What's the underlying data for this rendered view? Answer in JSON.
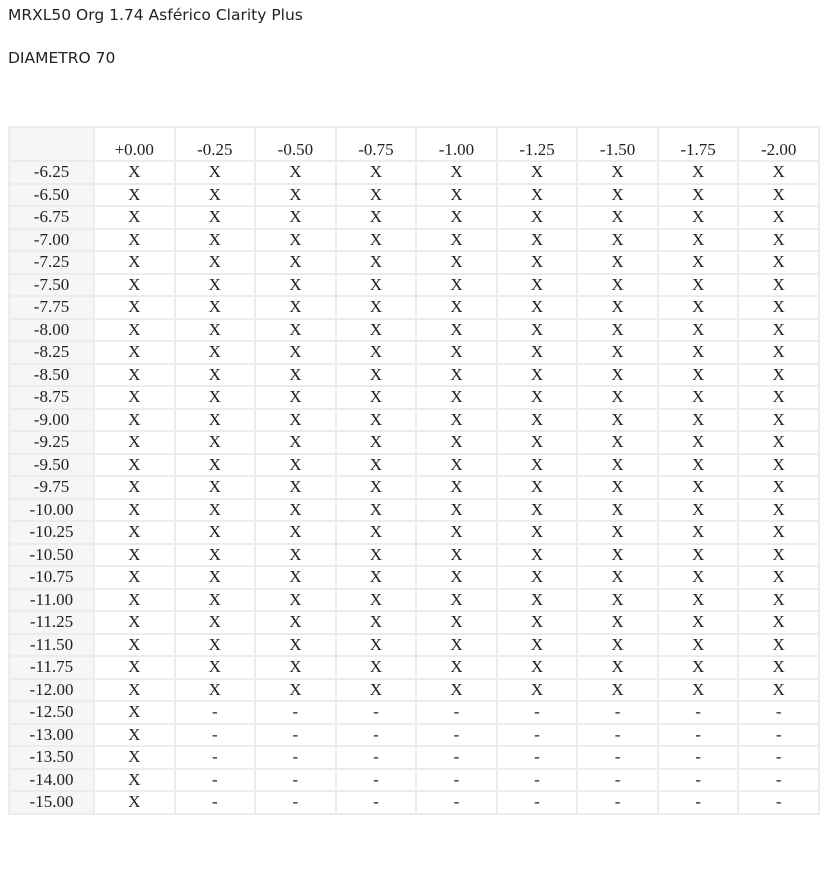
{
  "title": "MRXL50 Org 1.74 Asférico Clarity Plus",
  "subtitle": "DIAMETRO 70",
  "table": {
    "corner": "",
    "columns": [
      "+0.00",
      "-0.25",
      "-0.50",
      "-0.75",
      "-1.00",
      "-1.25",
      "-1.50",
      "-1.75",
      "-2.00"
    ],
    "rows": [
      {
        "label": "-6.25",
        "cells": [
          "X",
          "X",
          "X",
          "X",
          "X",
          "X",
          "X",
          "X",
          "X"
        ]
      },
      {
        "label": "-6.50",
        "cells": [
          "X",
          "X",
          "X",
          "X",
          "X",
          "X",
          "X",
          "X",
          "X"
        ]
      },
      {
        "label": "-6.75",
        "cells": [
          "X",
          "X",
          "X",
          "X",
          "X",
          "X",
          "X",
          "X",
          "X"
        ]
      },
      {
        "label": "-7.00",
        "cells": [
          "X",
          "X",
          "X",
          "X",
          "X",
          "X",
          "X",
          "X",
          "X"
        ]
      },
      {
        "label": "-7.25",
        "cells": [
          "X",
          "X",
          "X",
          "X",
          "X",
          "X",
          "X",
          "X",
          "X"
        ]
      },
      {
        "label": "-7.50",
        "cells": [
          "X",
          "X",
          "X",
          "X",
          "X",
          "X",
          "X",
          "X",
          "X"
        ]
      },
      {
        "label": "-7.75",
        "cells": [
          "X",
          "X",
          "X",
          "X",
          "X",
          "X",
          "X",
          "X",
          "X"
        ]
      },
      {
        "label": "-8.00",
        "cells": [
          "X",
          "X",
          "X",
          "X",
          "X",
          "X",
          "X",
          "X",
          "X"
        ]
      },
      {
        "label": "-8.25",
        "cells": [
          "X",
          "X",
          "X",
          "X",
          "X",
          "X",
          "X",
          "X",
          "X"
        ]
      },
      {
        "label": "-8.50",
        "cells": [
          "X",
          "X",
          "X",
          "X",
          "X",
          "X",
          "X",
          "X",
          "X"
        ]
      },
      {
        "label": "-8.75",
        "cells": [
          "X",
          "X",
          "X",
          "X",
          "X",
          "X",
          "X",
          "X",
          "X"
        ]
      },
      {
        "label": "-9.00",
        "cells": [
          "X",
          "X",
          "X",
          "X",
          "X",
          "X",
          "X",
          "X",
          "X"
        ]
      },
      {
        "label": "-9.25",
        "cells": [
          "X",
          "X",
          "X",
          "X",
          "X",
          "X",
          "X",
          "X",
          "X"
        ]
      },
      {
        "label": "-9.50",
        "cells": [
          "X",
          "X",
          "X",
          "X",
          "X",
          "X",
          "X",
          "X",
          "X"
        ]
      },
      {
        "label": "-9.75",
        "cells": [
          "X",
          "X",
          "X",
          "X",
          "X",
          "X",
          "X",
          "X",
          "X"
        ]
      },
      {
        "label": "-10.00",
        "cells": [
          "X",
          "X",
          "X",
          "X",
          "X",
          "X",
          "X",
          "X",
          "X"
        ]
      },
      {
        "label": "-10.25",
        "cells": [
          "X",
          "X",
          "X",
          "X",
          "X",
          "X",
          "X",
          "X",
          "X"
        ]
      },
      {
        "label": "-10.50",
        "cells": [
          "X",
          "X",
          "X",
          "X",
          "X",
          "X",
          "X",
          "X",
          "X"
        ]
      },
      {
        "label": "-10.75",
        "cells": [
          "X",
          "X",
          "X",
          "X",
          "X",
          "X",
          "X",
          "X",
          "X"
        ]
      },
      {
        "label": "-11.00",
        "cells": [
          "X",
          "X",
          "X",
          "X",
          "X",
          "X",
          "X",
          "X",
          "X"
        ]
      },
      {
        "label": "-11.25",
        "cells": [
          "X",
          "X",
          "X",
          "X",
          "X",
          "X",
          "X",
          "X",
          "X"
        ]
      },
      {
        "label": "-11.50",
        "cells": [
          "X",
          "X",
          "X",
          "X",
          "X",
          "X",
          "X",
          "X",
          "X"
        ]
      },
      {
        "label": "-11.75",
        "cells": [
          "X",
          "X",
          "X",
          "X",
          "X",
          "X",
          "X",
          "X",
          "X"
        ]
      },
      {
        "label": "-12.00",
        "cells": [
          "X",
          "X",
          "X",
          "X",
          "X",
          "X",
          "X",
          "X",
          "X"
        ]
      },
      {
        "label": "-12.50",
        "cells": [
          "X",
          "-",
          "-",
          "-",
          "-",
          "-",
          "-",
          "-",
          "-"
        ]
      },
      {
        "label": "-13.00",
        "cells": [
          "X",
          "-",
          "-",
          "-",
          "-",
          "-",
          "-",
          "-",
          "-"
        ]
      },
      {
        "label": "-13.50",
        "cells": [
          "X",
          "-",
          "-",
          "-",
          "-",
          "-",
          "-",
          "-",
          "-"
        ]
      },
      {
        "label": "-14.00",
        "cells": [
          "X",
          "-",
          "-",
          "-",
          "-",
          "-",
          "-",
          "-",
          "-"
        ]
      },
      {
        "label": "-15.00",
        "cells": [
          "X",
          "-",
          "-",
          "-",
          "-",
          "-",
          "-",
          "-",
          "-"
        ]
      }
    ]
  }
}
